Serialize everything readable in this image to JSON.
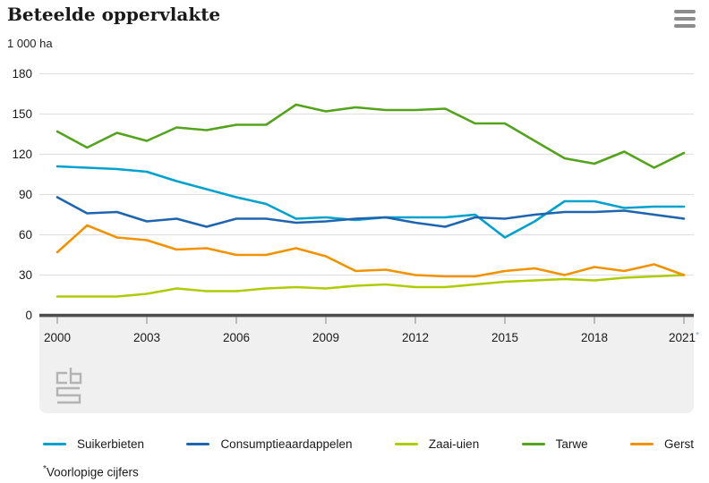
{
  "header": {
    "title": "Beteelde oppervlakte",
    "unit_label": "1 000 ha",
    "menu_icon": "hamburger-menu-icon"
  },
  "branding": {
    "logo": "cbs-logo"
  },
  "footnote": {
    "marker": "*",
    "text": "Voorlopige cijfers"
  },
  "colors": {
    "suikerbieten": "#00a1cd",
    "consumptieaardappelen": "#1e64ae",
    "zaai_uien": "#afcb05",
    "tarwe": "#53a31d",
    "gerst": "#f39200",
    "grid": "#e1e1e1",
    "axis": "#4c4c4c",
    "tick": "#999999",
    "panel": "#f0f0f0",
    "text": "#1a1a1a",
    "logo": "#b3b3b3",
    "provisional_marker": "#8aa4bd"
  },
  "chart_data": {
    "type": "line",
    "title": "Beteelde oppervlakte",
    "ylabel": "1 000 ha",
    "ylim": [
      0,
      180
    ],
    "yticks": [
      0,
      30,
      60,
      90,
      120,
      150,
      180
    ],
    "xticks": [
      "2000",
      "2003",
      "2006",
      "2009",
      "2012",
      "2015",
      "2018",
      "2021*"
    ],
    "grid": true,
    "legend_position": "bottom",
    "provisional_note": "2021 figures are provisional (*)",
    "x": [
      2000,
      2001,
      2002,
      2003,
      2004,
      2005,
      2006,
      2007,
      2008,
      2009,
      2010,
      2011,
      2012,
      2013,
      2014,
      2015,
      2016,
      2017,
      2018,
      2019,
      2020,
      2021
    ],
    "series": [
      {
        "name": "Suikerbieten",
        "color": "#00a1cd",
        "values": [
          111,
          110,
          109,
          107,
          100,
          94,
          88,
          83,
          72,
          73,
          71,
          73,
          73,
          73,
          75,
          58,
          70,
          85,
          85,
          80,
          81,
          81
        ]
      },
      {
        "name": "Consumptieaardappelen",
        "color": "#1e64ae",
        "values": [
          88,
          76,
          77,
          70,
          72,
          66,
          72,
          72,
          69,
          70,
          72,
          73,
          69,
          66,
          73,
          72,
          75,
          77,
          77,
          78,
          75,
          72
        ]
      },
      {
        "name": "Zaai-uien",
        "color": "#afcb05",
        "values": [
          14,
          14,
          14,
          16,
          20,
          18,
          18,
          20,
          21,
          20,
          22,
          23,
          21,
          21,
          23,
          25,
          26,
          27,
          26,
          28,
          29,
          30
        ]
      },
      {
        "name": "Tarwe",
        "color": "#53a31d",
        "values": [
          137,
          125,
          136,
          130,
          140,
          138,
          142,
          142,
          157,
          152,
          155,
          153,
          153,
          154,
          143,
          143,
          130,
          117,
          113,
          122,
          110,
          121
        ]
      },
      {
        "name": "Gerst",
        "color": "#f39200",
        "values": [
          47,
          67,
          58,
          56,
          49,
          50,
          45,
          45,
          50,
          44,
          33,
          34,
          30,
          29,
          29,
          33,
          35,
          30,
          36,
          33,
          38,
          30
        ]
      }
    ]
  }
}
